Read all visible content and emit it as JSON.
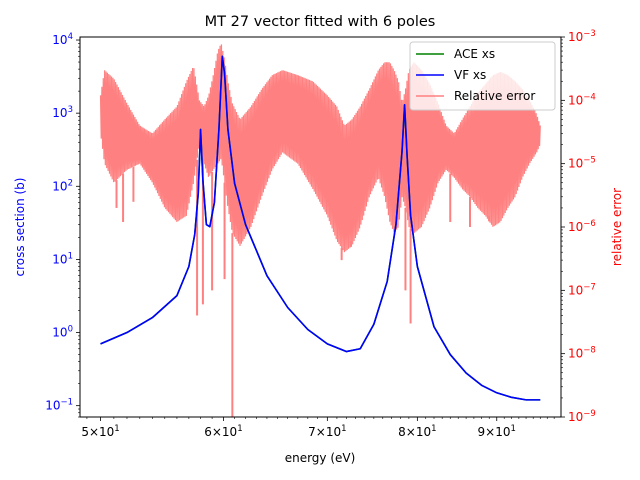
{
  "chart_data": {
    "type": "line",
    "title": "MT 27 vector fitted with 6 poles",
    "xlabel": "energy (eV)",
    "ylabel_left": "cross section (b)",
    "ylabel_right": "relative error",
    "xscale": "log",
    "yscale_left": "log",
    "yscale_right": "log",
    "xlim": [
      48.5,
      99
    ],
    "ylim_left": [
      0.07,
      11000
    ],
    "ylim_right": [
      1e-09,
      0.001
    ],
    "x_ticks": [
      {
        "value": 50,
        "base": "5×10",
        "exp": "1"
      },
      {
        "value": 60,
        "base": "6×10",
        "exp": "1"
      },
      {
        "value": 70,
        "base": "7×10",
        "exp": "1"
      },
      {
        "value": 80,
        "base": "8×10",
        "exp": "1"
      },
      {
        "value": 90,
        "base": "9×10",
        "exp": "1"
      }
    ],
    "y_left_ticks": [
      {
        "value": 0.1,
        "base": "10",
        "exp": "−1"
      },
      {
        "value": 1,
        "base": "10",
        "exp": "0"
      },
      {
        "value": 10,
        "base": "10",
        "exp": "1"
      },
      {
        "value": 100,
        "base": "10",
        "exp": "2"
      },
      {
        "value": 1000,
        "base": "10",
        "exp": "3"
      },
      {
        "value": 10000,
        "base": "10",
        "exp": "4"
      }
    ],
    "y_right_ticks": [
      {
        "value": 1e-09,
        "base": "10",
        "exp": "−9"
      },
      {
        "value": 1e-08,
        "base": "10",
        "exp": "−8"
      },
      {
        "value": 1e-07,
        "base": "10",
        "exp": "−7"
      },
      {
        "value": 1e-06,
        "base": "10",
        "exp": "−6"
      },
      {
        "value": 1e-05,
        "base": "10",
        "exp": "−5"
      },
      {
        "value": 0.0001,
        "base": "10",
        "exp": "−4"
      },
      {
        "value": 0.001,
        "base": "10",
        "exp": "−3"
      }
    ],
    "legend": {
      "position": "top-right",
      "entries": [
        {
          "label": "ACE xs",
          "color": "#008000"
        },
        {
          "label": "VF xs",
          "color": "#0000ff"
        },
        {
          "label": "Relative error",
          "color": "#ff8080"
        }
      ]
    },
    "series": [
      {
        "name": "ACE xs",
        "axis": "left",
        "color": "#008000",
        "x": [
          50,
          52,
          54,
          56,
          57,
          57.5,
          57.8,
          58,
          58.2,
          58.5,
          58.8,
          59.2,
          59.6,
          59.9,
          60.1,
          60.4,
          61,
          62,
          64,
          66,
          68,
          70,
          72,
          73.5,
          75,
          76.5,
          77.5,
          78.2,
          78.5,
          78.8,
          79.2,
          80,
          82,
          84,
          86,
          88,
          90,
          92,
          94,
          96
        ],
        "y": [
          0.7,
          1.0,
          1.6,
          3.2,
          8,
          22,
          80,
          600,
          120,
          30,
          28,
          60,
          600,
          6000,
          3500,
          600,
          110,
          30,
          6,
          2.2,
          1.1,
          0.7,
          0.55,
          0.6,
          1.3,
          5,
          30,
          300,
          1300,
          250,
          40,
          8,
          1.2,
          0.5,
          0.28,
          0.19,
          0.15,
          0.13,
          0.12,
          0.12
        ]
      },
      {
        "name": "VF xs",
        "axis": "left",
        "color": "#0000ff",
        "x": [
          50,
          52,
          54,
          56,
          57,
          57.5,
          57.8,
          58,
          58.2,
          58.5,
          58.8,
          59.2,
          59.6,
          59.9,
          60.1,
          60.4,
          61,
          62,
          64,
          66,
          68,
          70,
          72,
          73.5,
          75,
          76.5,
          77.5,
          78.2,
          78.5,
          78.8,
          79.2,
          80,
          82,
          84,
          86,
          88,
          90,
          92,
          94,
          96
        ],
        "y": [
          0.7,
          1.0,
          1.6,
          3.2,
          8,
          22,
          80,
          600,
          120,
          30,
          28,
          60,
          600,
          6000,
          3500,
          600,
          110,
          30,
          6,
          2.2,
          1.1,
          0.7,
          0.55,
          0.6,
          1.3,
          5,
          30,
          300,
          1300,
          250,
          40,
          8,
          1.2,
          0.5,
          0.28,
          0.19,
          0.15,
          0.13,
          0.12,
          0.12
        ]
      },
      {
        "name": "Relative error",
        "axis": "right",
        "color": "#ff8080",
        "envelope_x": [
          50,
          50.3,
          51,
          52,
          53,
          54,
          55,
          56,
          56.8,
          57.4,
          57.9,
          58.3,
          58.7,
          59.1,
          59.5,
          59.8,
          60.1,
          60.4,
          60.8,
          61.5,
          62.5,
          63.5,
          64.5,
          65.5,
          67,
          68.5,
          70,
          71,
          71.8,
          72.6,
          73.5,
          74.5,
          75.5,
          76.2,
          76.8,
          77.3,
          77.8,
          78.2,
          78.6,
          79,
          79.6,
          80.5,
          81.5,
          82.5,
          83.5,
          84.5,
          85.5,
          86.5,
          87.5,
          88.5,
          89.5,
          90.5,
          91.5,
          92.5,
          93.5,
          94.5,
          95.5,
          96
        ],
        "envelope_hi": [
          0.00012,
          0.0003,
          0.00022,
          9e-05,
          4e-05,
          3e-05,
          5e-05,
          8e-05,
          0.0002,
          0.00035,
          0.0001,
          8e-05,
          0.00012,
          0.00025,
          0.0006,
          0.0008,
          0.00045,
          0.0002,
          9e-05,
          5e-05,
          8e-05,
          0.00015,
          0.00025,
          0.0003,
          0.00025,
          0.0002,
          0.00012,
          8e-05,
          4e-05,
          5e-05,
          8e-05,
          0.00015,
          0.0003,
          0.0004,
          0.0004,
          0.0003,
          0.0002,
          9e-05,
          0.00015,
          0.0003,
          0.0004,
          0.0003,
          0.00018,
          9e-05,
          4e-05,
          3e-05,
          5e-05,
          8e-05,
          0.00013,
          0.00018,
          0.00025,
          0.00028,
          0.00025,
          0.0002,
          0.00015,
          0.0001,
          6e-05,
          4e-05
        ],
        "envelope_lo": [
          3e-05,
          1e-05,
          5e-06,
          8e-06,
          1e-05,
          5e-06,
          2e-06,
          1.2e-06,
          1.5e-06,
          5e-06,
          2e-05,
          1e-05,
          6e-06,
          8e-06,
          1e-05,
          1.2e-05,
          5e-06,
          2e-06,
          8e-07,
          5e-07,
          1e-06,
          3e-06,
          8e-06,
          1.5e-05,
          1e-05,
          4e-06,
          1.5e-06,
          6e-07,
          4e-07,
          5e-07,
          1e-06,
          3e-06,
          6e-06,
          3e-06,
          1.2e-06,
          8e-07,
          1e-06,
          3e-06,
          2e-06,
          1e-06,
          8e-07,
          1e-06,
          2e-06,
          5e-06,
          8e-06,
          6e-06,
          4e-06,
          3e-06,
          2e-06,
          1.5e-06,
          1e-06,
          1.2e-06,
          2e-06,
          3e-06,
          6e-06,
          1e-05,
          1.5e-05,
          2e-05
        ],
        "dips": [
          {
            "x": 51.2,
            "y": 2e-06
          },
          {
            "x": 51.7,
            "y": 1.2e-06
          },
          {
            "x": 52.5,
            "y": 2.5e-06
          },
          {
            "x": 57.7,
            "y": 4e-08
          },
          {
            "x": 58.2,
            "y": 6e-08
          },
          {
            "x": 59.0,
            "y": 1e-07
          },
          {
            "x": 60.1,
            "y": 1.5e-07
          },
          {
            "x": 60.8,
            "y": 1e-09
          },
          {
            "x": 71.5,
            "y": 3e-07
          },
          {
            "x": 72.5,
            "y": 6e-07
          },
          {
            "x": 78.6,
            "y": 1e-07
          },
          {
            "x": 79.2,
            "y": 3e-08
          },
          {
            "x": 84.0,
            "y": 1.2e-06
          },
          {
            "x": 86.5,
            "y": 1e-06
          },
          {
            "x": 89.0,
            "y": 1.5e-06
          }
        ]
      }
    ]
  }
}
